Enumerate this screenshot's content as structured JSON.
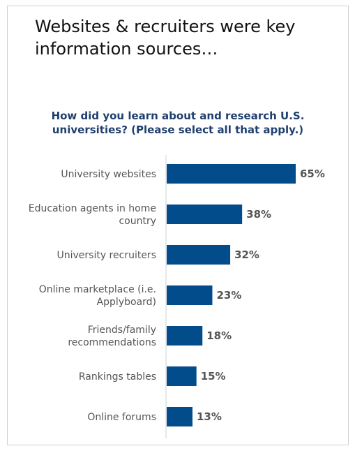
{
  "headline": "Websites & recruiters were key information sources…",
  "chart_data": {
    "type": "bar",
    "orientation": "horizontal",
    "title": "How did you learn about and research U.S. universities? (Please select all that apply.)",
    "categories": [
      [
        "University websites"
      ],
      [
        "Education agents in home",
        "country"
      ],
      [
        "University recruiters"
      ],
      [
        "Online marketplace (i.e.",
        "Applyboard)"
      ],
      [
        "Friends/family",
        "recommendations"
      ],
      [
        "Rankings tables"
      ],
      [
        "Online forums"
      ]
    ],
    "values": [
      65,
      38,
      32,
      23,
      18,
      15,
      13
    ],
    "value_labels": [
      "65%",
      "38%",
      "32%",
      "23%",
      "18%",
      "15%",
      "13%"
    ],
    "xlim": [
      0,
      70
    ],
    "grid": false,
    "legend": "none",
    "bar_color": "#034c8c",
    "axis_color": "#d0d0d0"
  }
}
